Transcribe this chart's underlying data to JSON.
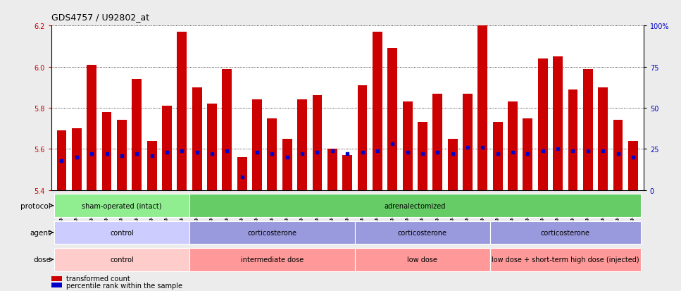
{
  "title": "GDS4757 / U92802_at",
  "samples": [
    "GSM923289",
    "GSM923290",
    "GSM923291",
    "GSM923292",
    "GSM923293",
    "GSM923294",
    "GSM923295",
    "GSM923296",
    "GSM923297",
    "GSM923298",
    "GSM923299",
    "GSM923300",
    "GSM923301",
    "GSM923302",
    "GSM923303",
    "GSM923304",
    "GSM923305",
    "GSM923306",
    "GSM923307",
    "GSM923308",
    "GSM923309",
    "GSM923310",
    "GSM923311",
    "GSM923312",
    "GSM923313",
    "GSM923314",
    "GSM923315",
    "GSM923316",
    "GSM923317",
    "GSM923318",
    "GSM923319",
    "GSM923320",
    "GSM923321",
    "GSM923322",
    "GSM923323",
    "GSM923324",
    "GSM923325",
    "GSM923326",
    "GSM923327"
  ],
  "bar_values": [
    5.69,
    5.7,
    6.01,
    5.78,
    5.74,
    5.94,
    5.64,
    5.81,
    6.17,
    5.9,
    5.82,
    5.99,
    5.56,
    5.84,
    5.75,
    5.65,
    5.84,
    5.86,
    5.6,
    5.57,
    5.91,
    6.17,
    6.09,
    5.83,
    5.73,
    5.87,
    5.65,
    5.87,
    6.21,
    5.73,
    5.83,
    5.75,
    6.04,
    6.05,
    5.89,
    5.99,
    5.9,
    5.74,
    5.64
  ],
  "percentile_values": [
    18,
    20,
    22,
    22,
    21,
    22,
    21,
    23,
    24,
    23,
    22,
    24,
    8,
    23,
    22,
    20,
    22,
    23,
    24,
    22,
    23,
    24,
    28,
    23,
    22,
    23,
    22,
    26,
    26,
    22,
    23,
    22,
    24,
    25,
    24,
    24,
    24,
    22,
    20
  ],
  "ylim_left": [
    5.4,
    6.2
  ],
  "ylim_right": [
    0,
    100
  ],
  "yticks_left": [
    5.4,
    5.6,
    5.8,
    6.0,
    6.2
  ],
  "yticks_right": [
    0,
    25,
    50,
    75,
    100
  ],
  "ytick_labels_right": [
    "0",
    "25",
    "50",
    "75",
    "100%"
  ],
  "bar_color": "#cc0000",
  "percentile_color": "#0000cc",
  "protocol_groups": [
    {
      "label": "sham-operated (intact)",
      "start": 0,
      "end": 9,
      "color": "#90ee90"
    },
    {
      "label": "adrenalectomized",
      "start": 9,
      "end": 39,
      "color": "#66cc66"
    }
  ],
  "agent_groups": [
    {
      "label": "control",
      "start": 0,
      "end": 9,
      "color": "#ccccff"
    },
    {
      "label": "corticosterone",
      "start": 9,
      "end": 20,
      "color": "#9999dd"
    },
    {
      "label": "corticosterone",
      "start": 20,
      "end": 29,
      "color": "#9999dd"
    },
    {
      "label": "corticosterone",
      "start": 29,
      "end": 39,
      "color": "#9999dd"
    }
  ],
  "dose_groups": [
    {
      "label": "control",
      "start": 0,
      "end": 9,
      "color": "#ffcccc"
    },
    {
      "label": "intermediate dose",
      "start": 9,
      "end": 20,
      "color": "#ff9999"
    },
    {
      "label": "low dose",
      "start": 20,
      "end": 29,
      "color": "#ff9999"
    },
    {
      "label": "low dose + short-term high dose (injected)",
      "start": 29,
      "end": 39,
      "color": "#ff9999"
    }
  ],
  "row_labels": [
    "protocol",
    "agent",
    "dose"
  ],
  "legend_bar_label": "transformed count",
  "legend_pct_label": "percentile rank within the sample",
  "background_color": "#ececec",
  "plot_bg": "#ffffff"
}
